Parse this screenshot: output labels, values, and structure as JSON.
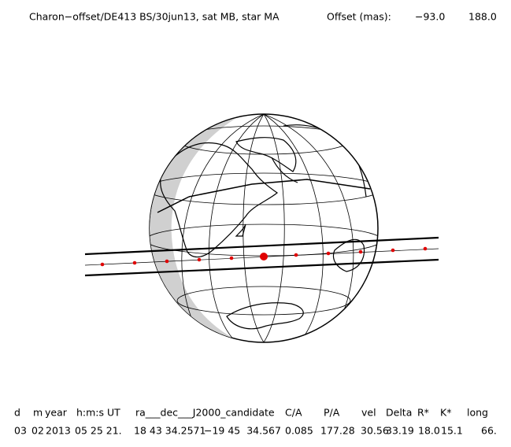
{
  "header": {
    "title": "Charon−offset/DE413 BS/30jun13, sat MB, star MA",
    "offset_label": "Offset (mas):",
    "offset_values": [
      "−93.0",
      "188.0"
    ]
  },
  "table": {
    "columns": [
      "d",
      "m",
      "year",
      "h:m:s UT",
      "ra___dec___J2000_candidate",
      "C/A",
      "P/A",
      "vel",
      "Delta",
      "R*",
      "K*",
      "long"
    ],
    "rows": [
      [
        "03",
        "02",
        "2013",
        "05 25 21.",
        "18 43 34.2571",
        "−19 45  34.567",
        "0.085",
        "177.28",
        "30.56",
        "33.19",
        "18.0",
        "15.1",
        "66."
      ]
    ]
  }
}
